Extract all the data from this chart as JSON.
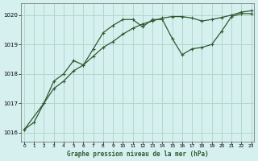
{
  "title": "Graphe pression niveau de la mer (hPa)",
  "background_color": "#d6f0f0",
  "line_color": "#2d5a2d",
  "grid_color": "#b0d8c8",
  "x_ticks": [
    0,
    1,
    2,
    3,
    4,
    5,
    6,
    7,
    8,
    9,
    10,
    11,
    12,
    13,
    14,
    15,
    16,
    17,
    18,
    19,
    20,
    21,
    22,
    23
  ],
  "y_ticks": [
    1016,
    1017,
    1018,
    1019,
    1020
  ],
  "ylim": [
    1015.7,
    1020.4
  ],
  "xlim": [
    -0.3,
    23.3
  ],
  "series1_x": [
    0,
    1,
    2,
    3,
    4,
    5,
    6,
    7,
    8,
    9,
    10,
    11,
    12,
    13,
    14,
    15,
    16,
    17,
    18,
    19,
    20,
    21,
    22,
    23
  ],
  "series1_y": [
    1016.1,
    1016.35,
    1017.0,
    1017.5,
    1017.75,
    1018.1,
    1018.3,
    1018.6,
    1018.9,
    1019.1,
    1019.35,
    1019.55,
    1019.7,
    1019.8,
    1019.9,
    1019.95,
    1019.95,
    1019.9,
    1019.8,
    1019.85,
    1019.92,
    1020.0,
    1020.1,
    1020.15
  ],
  "series2_x": [
    0,
    2,
    3,
    4,
    5,
    6,
    7,
    8,
    9,
    10,
    11,
    12,
    13,
    14,
    15,
    16,
    17,
    18,
    19,
    20,
    21,
    22,
    23
  ],
  "series2_y": [
    1016.1,
    1017.0,
    1017.75,
    1018.0,
    1018.45,
    1018.3,
    1018.85,
    1019.4,
    1019.65,
    1019.85,
    1019.85,
    1019.6,
    1019.85,
    1019.85,
    1019.2,
    1018.65,
    1018.85,
    1018.9,
    1019.0,
    1019.45,
    1019.95,
    1020.05,
    1020.05
  ]
}
